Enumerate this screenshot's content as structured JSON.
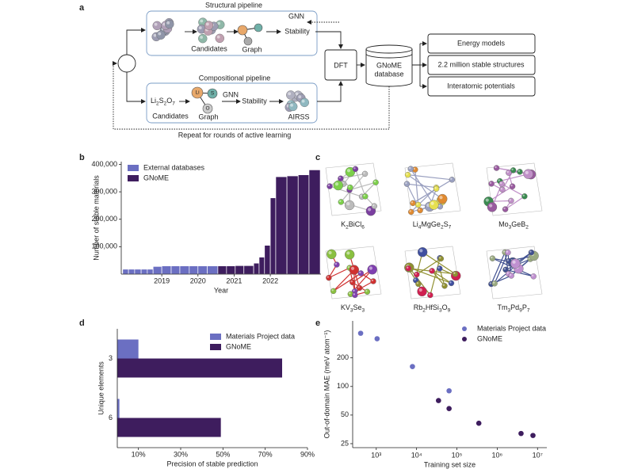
{
  "panel_labels": [
    "a",
    "b",
    "c",
    "d",
    "e"
  ],
  "diagram": {
    "structural_pipeline": {
      "title": "Structural pipeline",
      "gnn": "GNN",
      "candidates": "Candidates",
      "graph": "Graph",
      "stability": "Stability"
    },
    "compositional_pipeline": {
      "title": "Compositional pipeline",
      "formula": [
        "Li",
        "2",
        "S",
        "2",
        "O",
        "7"
      ],
      "candidates": "Candidates",
      "graph_nodes": [
        "Li",
        "S",
        "O"
      ],
      "graph": "Graph",
      "gnn": "GNN",
      "stability": "Stability",
      "airss": "AIRSS"
    },
    "dft": "DFT",
    "database": [
      "GNoME",
      "database"
    ],
    "outputs": [
      "Energy models",
      "2.2 million stable structures",
      "Interatomic potentials"
    ],
    "loop": "Repeat for rounds of active learning"
  },
  "structures": [
    {
      "formula": [
        "K",
        "2",
        "BiCl",
        "6"
      ]
    },
    {
      "formula": [
        "Li",
        "4",
        "MgGe",
        "2",
        "S",
        "7"
      ]
    },
    {
      "formula": [
        "Mo",
        "3",
        "GeB",
        "2"
      ]
    },
    {
      "formula": [
        "KV",
        "3",
        "Se",
        "3"
      ]
    },
    {
      "formula": [
        "Rb",
        "2",
        "HfSi",
        "3",
        "O",
        "9"
      ]
    },
    {
      "formula": [
        "Tm",
        "3",
        "Pd",
        "9",
        "P",
        "7"
      ]
    }
  ],
  "chart_data": [
    {
      "type": "histogram",
      "xlabel": "Year",
      "ylabel": "Number of stable materials",
      "series": [
        {
          "name": "External databases",
          "color": "#6b6fc2",
          "bins": [
            2017.92,
            2018.08,
            2018.25,
            2018.43,
            2018.6,
            2018.76,
            2019.0,
            2019.26,
            2019.5,
            2019.76,
            2020.0,
            2020.26,
            2020.55
          ],
          "values": [
            18000,
            18000,
            18000,
            18000,
            18000,
            28000,
            30000,
            30000,
            30000,
            30000,
            30000,
            30000
          ]
        },
        {
          "name": "GNoME",
          "color": "#3e1d5e",
          "bins": [
            2020.55,
            2020.79,
            2021.03,
            2021.27,
            2021.54,
            2021.69,
            2021.84,
            2022.0,
            2022.15,
            2022.46,
            2022.77,
            2023.07,
            2023.38
          ],
          "values": [
            30000,
            30000,
            31000,
            31000,
            40000,
            62000,
            105000,
            278000,
            355000,
            358000,
            362000,
            380000
          ]
        }
      ],
      "xlim": [
        2017.88,
        2023.4
      ],
      "xticks": [
        2019,
        2020,
        2021,
        2022
      ],
      "ylim": [
        0,
        410000
      ],
      "yticks": [
        {
          "value": 100000,
          "label": "100,000"
        },
        {
          "value": 200000,
          "label": "200,000"
        },
        {
          "value": 300000,
          "label": "300,000"
        },
        {
          "value": 400000,
          "label": "400,000"
        }
      ],
      "legend": "upper left"
    },
    {
      "type": "barh",
      "xlabel": "Precision of stable prediction",
      "ylabel": "Unique elements",
      "categories": [
        "3",
        "6"
      ],
      "series": [
        {
          "name": "Materials Project data",
          "color": "#6b6fc2",
          "values": [
            10,
            1
          ]
        },
        {
          "name": "GNoME",
          "color": "#3e1d5e",
          "values": [
            78,
            49
          ]
        }
      ],
      "xlim": [
        0,
        90
      ],
      "xticks": [
        {
          "value": 10,
          "label": "10%"
        },
        {
          "value": 30,
          "label": "30%"
        },
        {
          "value": 50,
          "label": "50%"
        },
        {
          "value": 70,
          "label": "70%"
        },
        {
          "value": 90,
          "label": "90%"
        }
      ],
      "legend": "upper right"
    },
    {
      "type": "scatter",
      "xlabel": "Training set size",
      "ylabel": "Out-of-domain MAE (meV atom⁻¹)",
      "xscale": "log",
      "yscale": "log",
      "series": [
        {
          "name": "Materials Project data",
          "color": "#6b6fc2",
          "x": [
            410,
            1050,
            7900,
            64000
          ],
          "values": [
            363,
            318,
            162,
            90
          ]
        },
        {
          "name": "GNoME",
          "color": "#3e1d5e",
          "x": [
            35000,
            64000,
            350000,
            3900000,
            7700000
          ],
          "values": [
            71,
            58.5,
            41,
            32,
            30.5
          ]
        }
      ],
      "xlim": [
        260,
        17000000
      ],
      "xticks": [
        {
          "value": 1000,
          "label": "10³"
        },
        {
          "value": 10000,
          "label": "10⁴"
        },
        {
          "value": 100000,
          "label": "10⁵"
        },
        {
          "value": 1000000,
          "label": "10⁶"
        },
        {
          "value": 10000000,
          "label": "10⁷"
        }
      ],
      "ylim": [
        22.7,
        490
      ],
      "yticks": [
        25,
        50,
        100,
        200
      ],
      "legend": "upper right"
    }
  ]
}
